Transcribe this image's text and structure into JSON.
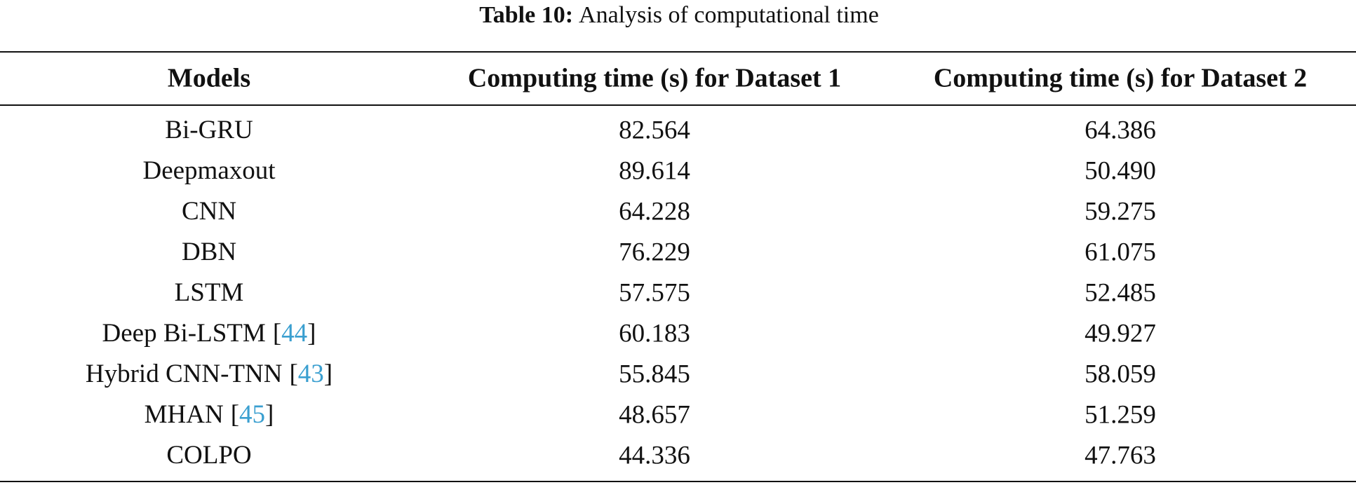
{
  "caption": {
    "label": "Table 10:",
    "text": "Analysis of computational time"
  },
  "table": {
    "headers": [
      "Models",
      "Computing time (s) for Dataset 1",
      "Computing time (s) for Dataset 2"
    ],
    "rows": [
      {
        "model": "Bi-GRU",
        "dataset1": "82.564",
        "dataset2": "64.386"
      },
      {
        "model": "Deepmaxout",
        "dataset1": "89.614",
        "dataset2": "50.490"
      },
      {
        "model": "CNN",
        "dataset1": "64.228",
        "dataset2": "59.275"
      },
      {
        "model": "DBN",
        "dataset1": "76.229",
        "dataset2": "61.075"
      },
      {
        "model": "LSTM",
        "dataset1": "57.575",
        "dataset2": "52.485"
      },
      {
        "model": "Deep Bi-LSTM",
        "citation": [
          "[",
          "44",
          "]"
        ],
        "dataset1": "60.183",
        "dataset2": "49.927"
      },
      {
        "model": "Hybrid CNN-TNN",
        "citation": [
          "[",
          "43",
          "]"
        ],
        "dataset1": "55.845",
        "dataset2": "58.059"
      },
      {
        "model": "MHAN",
        "citation": [
          "[",
          "45",
          "]"
        ],
        "dataset1": "48.657",
        "dataset2": "51.259"
      },
      {
        "model": "COLPO",
        "dataset1": "44.336",
        "dataset2": "47.763"
      }
    ]
  }
}
